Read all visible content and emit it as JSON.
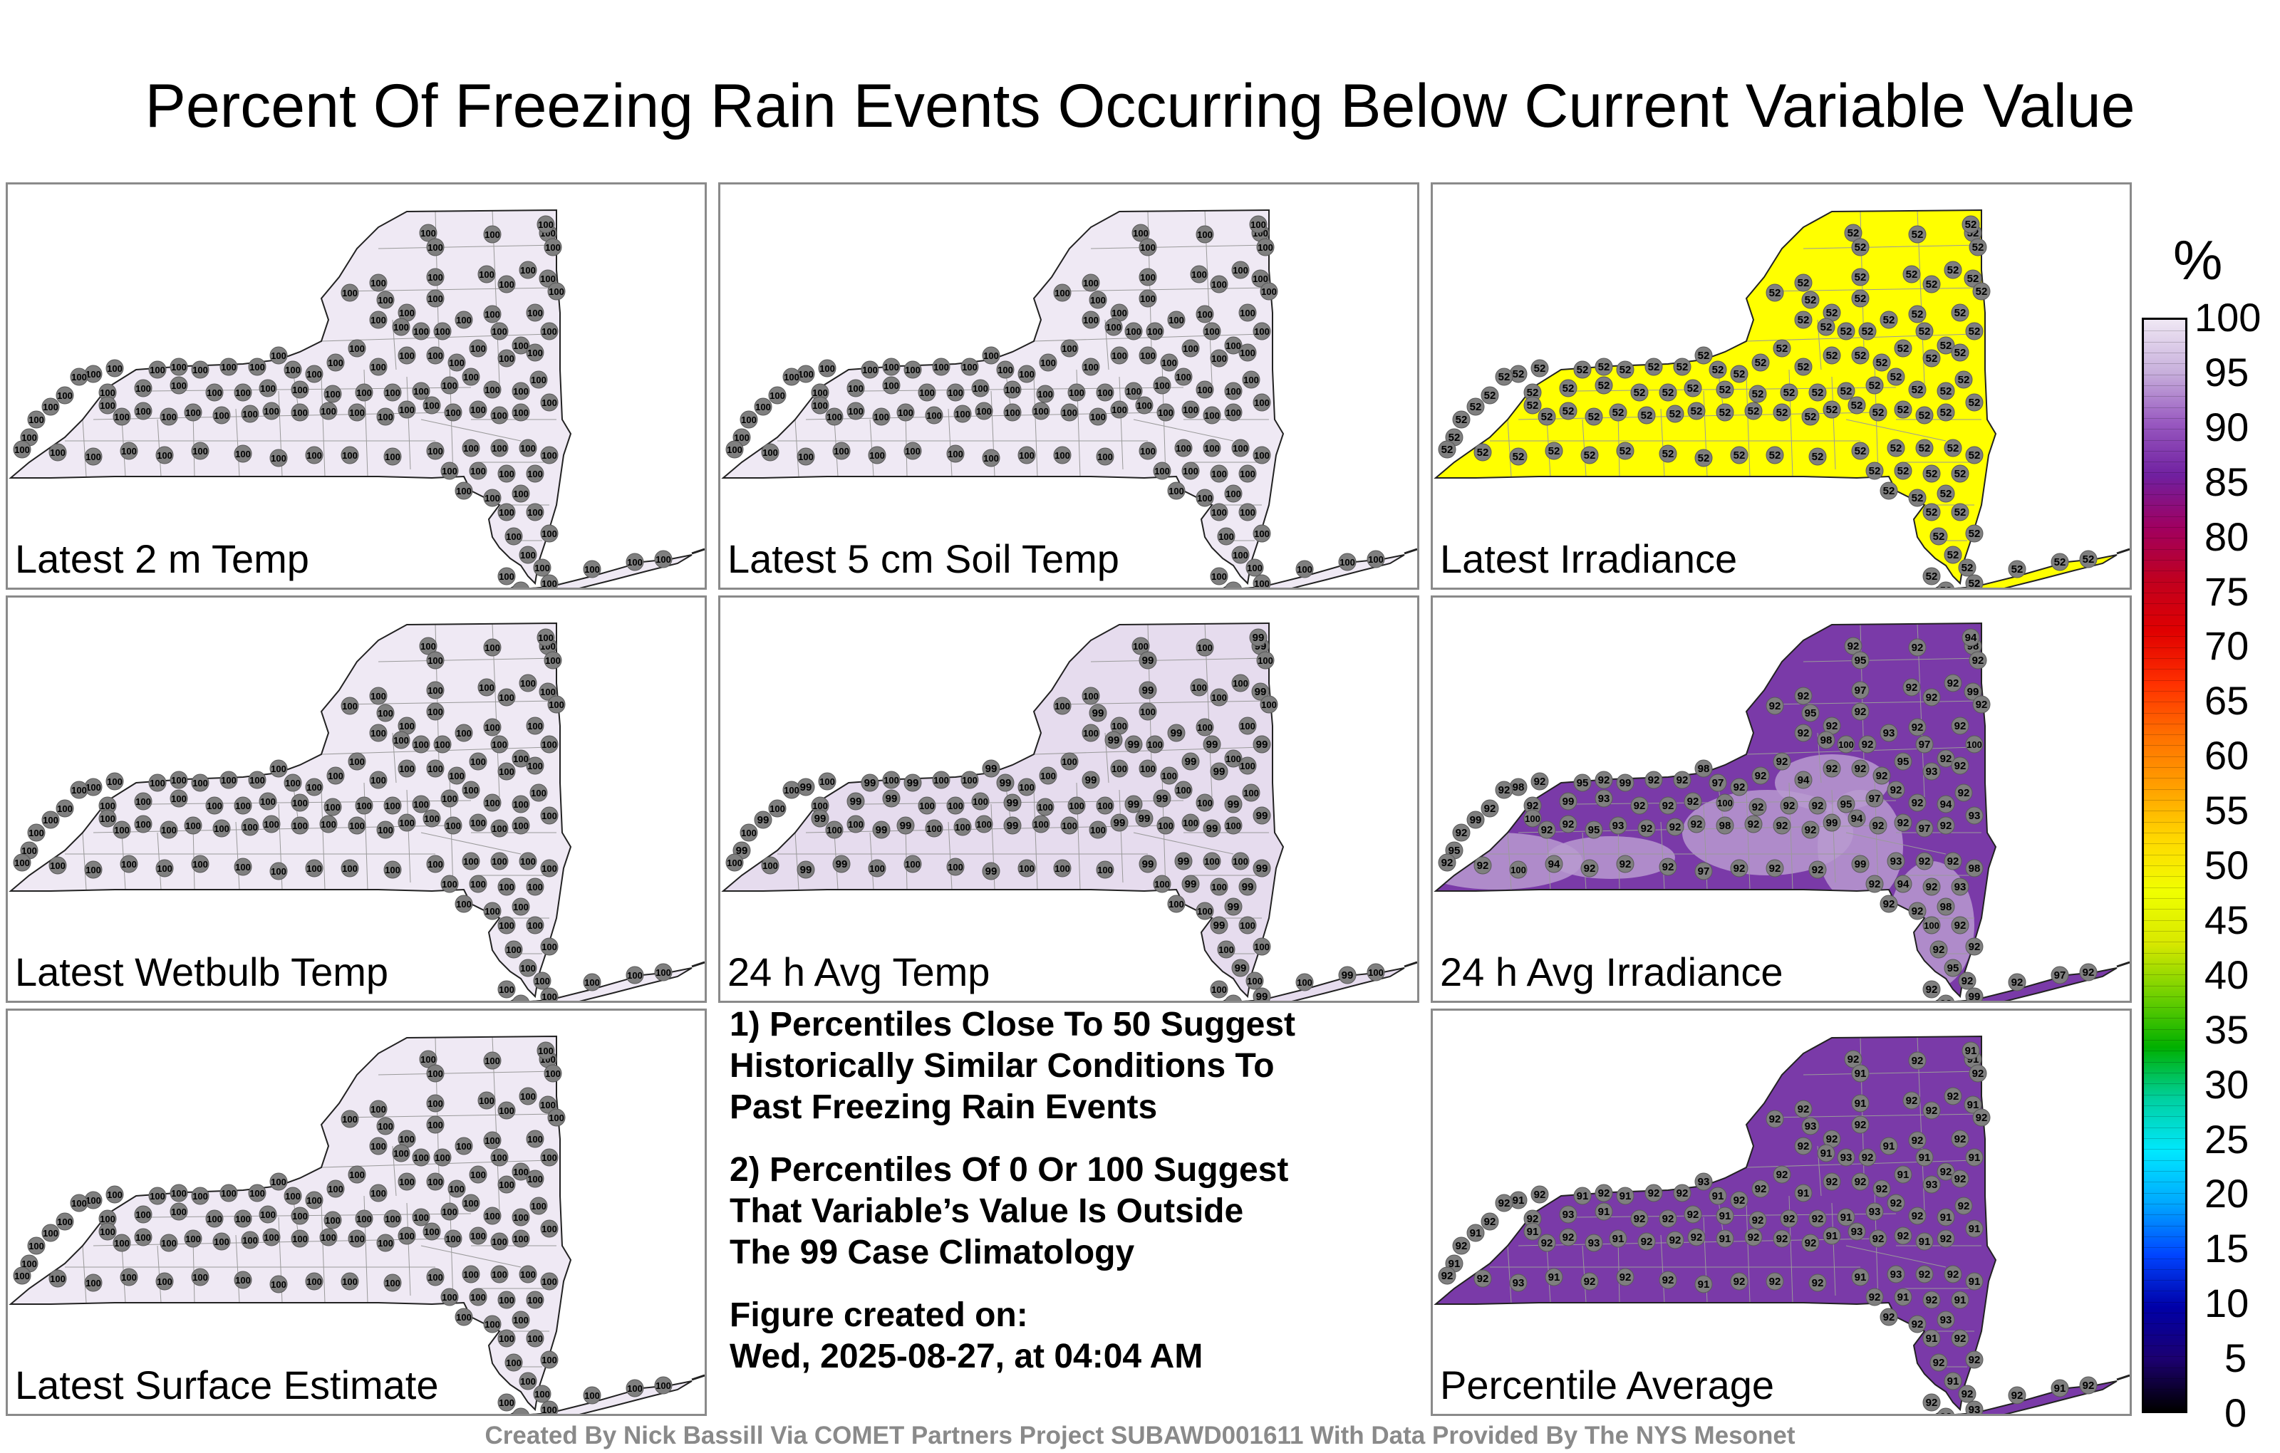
{
  "title": "Percent Of Freezing Rain Events Occurring Below Current Variable Value",
  "colorbar": {
    "unit": "%",
    "ticks": [
      "100",
      "95",
      "90",
      "85",
      "80",
      "75",
      "70",
      "65",
      "60",
      "55",
      "50",
      "45",
      "40",
      "35",
      "30",
      "25",
      "20",
      "15",
      "10",
      "5",
      "0"
    ],
    "stops": [
      "#000000",
      "#1c0070",
      "#0000a8",
      "#0044ff",
      "#00a8ff",
      "#00e8ff",
      "#00d0a0",
      "#00b000",
      "#70d000",
      "#d8e800",
      "#f0ff00",
      "#ffd800",
      "#ffa000",
      "#ff7000",
      "#ff3000",
      "#e00000",
      "#c00020",
      "#a00060",
      "#7020a0",
      "#9858c0",
      "#c8b0dc",
      "#f0e8f4"
    ]
  },
  "panels": [
    {
      "id": "latest-2m-temp",
      "label": "Latest 2 m Temp",
      "fill": "#efe9f4",
      "blob": "",
      "value": "100",
      "alt_values": []
    },
    {
      "id": "latest-5cm-soil-temp",
      "label": "Latest 5 cm Soil Temp",
      "fill": "#efe9f4",
      "blob": "",
      "value": "100",
      "alt_values": []
    },
    {
      "id": "latest-irradiance",
      "label": "Latest Irradiance",
      "fill": "#ffff00",
      "blob": "",
      "value": "52",
      "alt_values": []
    },
    {
      "id": "latest-wetbulb-temp",
      "label": "Latest Wetbulb Temp",
      "fill": "#efe9f4",
      "blob": "",
      "value": "100",
      "alt_values": []
    },
    {
      "id": "24h-avg-temp",
      "label": "24 h Avg Temp",
      "fill": "#e6dcee",
      "blob": "",
      "value": "100",
      "alt_values": [
        "99"
      ]
    },
    {
      "id": "24h-avg-irradiance",
      "label": "24 h Avg Irradiance",
      "fill": "#7a3aa8",
      "blob": "#b89ad0",
      "value": "92",
      "alt_values": [
        "93",
        "95",
        "97",
        "98",
        "100",
        "94",
        "99"
      ]
    },
    {
      "id": "latest-surface-estimate",
      "label": "Latest Surface Estimate",
      "fill": "#efe9f4",
      "blob": "",
      "value": "100",
      "alt_values": []
    },
    {
      "id": "percentile-average",
      "label": "Percentile Average",
      "fill": "#7a3aa8",
      "blob": "",
      "value": "92",
      "alt_values": [
        "93",
        "91"
      ]
    }
  ],
  "notes": {
    "note1": "1) Percentiles Close To 50 Suggest\nHistorically Similar Conditions To\nPast Freezing Rain Events",
    "note2": "2) Percentiles Of 0 Or 100 Suggest\nThat Variable’s Value Is Outside\nThe 99 Case Climatology",
    "created": "Figure created on:\nWed, 2025-08-27, at 04:04 AM"
  },
  "credit": "Created By Nick Bassill Via COMET Partners Project SUBAWD001611 With Data Provided By The NYS Mesonet"
}
